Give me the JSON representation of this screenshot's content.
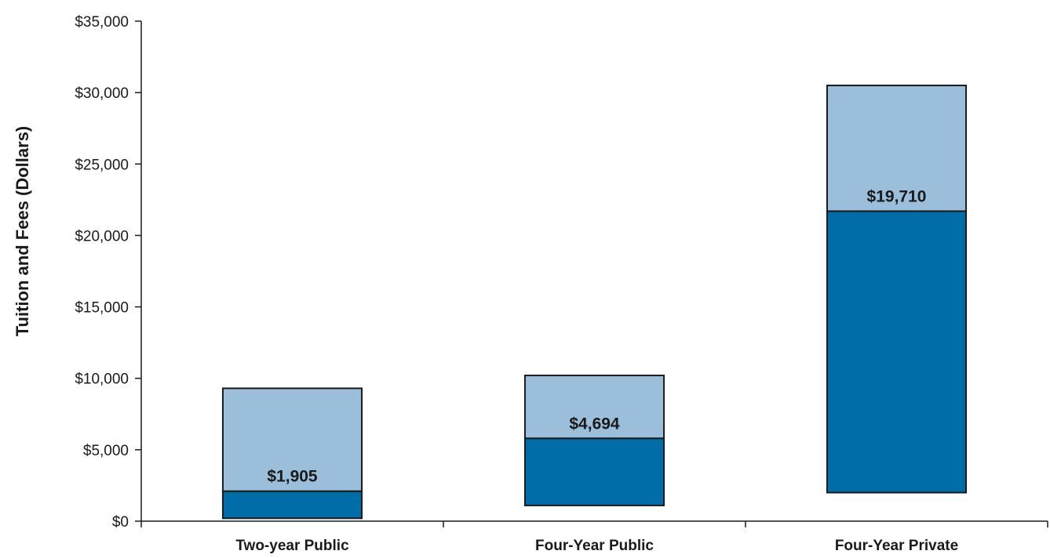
{
  "chart_data": {
    "type": "bar",
    "stacked": true,
    "floating": true,
    "categories": [
      "Two-year Public",
      "Four-Year Public",
      "Four-Year Private"
    ],
    "series": [
      {
        "color": "#006ca8",
        "segments": [
          {
            "from": 200,
            "to": 2100
          },
          {
            "from": 1100,
            "to": 5800
          },
          {
            "from": 2000,
            "to": 21700
          }
        ]
      },
      {
        "color": "#9bbedb",
        "segments": [
          {
            "from": 2100,
            "to": 9300
          },
          {
            "from": 5800,
            "to": 10200
          },
          {
            "from": 21700,
            "to": 30500
          }
        ]
      }
    ],
    "data_labels": [
      "$1,905",
      "$4,694",
      "$19,710"
    ],
    "title": "",
    "xlabel": "",
    "ylabel": "Tuition and Fees (Dollars)",
    "ylim": [
      0,
      35000
    ],
    "yticks": [
      0,
      5000,
      10000,
      15000,
      20000,
      25000,
      30000,
      35000
    ],
    "ytick_labels": [
      "$0",
      "$5,000",
      "$10,000",
      "$15,000",
      "$20,000",
      "$25,000",
      "$30,000",
      "$35,000"
    ],
    "grid": false,
    "legend": "none"
  }
}
